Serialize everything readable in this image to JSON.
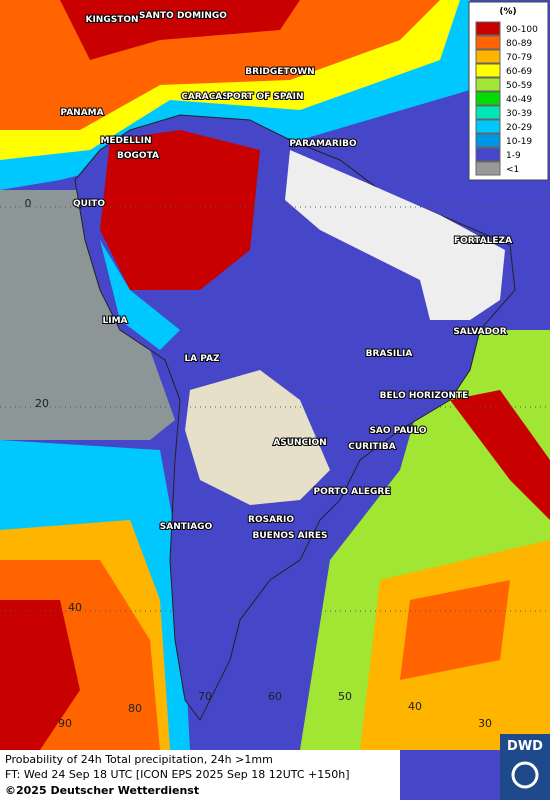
{
  "legend": {
    "title": "(%)",
    "items": [
      {
        "label": "90-100",
        "color": "#c80000"
      },
      {
        "label": "80-89",
        "color": "#ff6400"
      },
      {
        "label": "70-79",
        "color": "#ffb400"
      },
      {
        "label": "60-69",
        "color": "#ffff00"
      },
      {
        "label": "50-59",
        "color": "#a0e632"
      },
      {
        "label": "40-49",
        "color": "#00dc00"
      },
      {
        "label": "30-39",
        "color": "#00e6b4"
      },
      {
        "label": "20-29",
        "color": "#00c8ff"
      },
      {
        "label": "10-19",
        "color": "#0096e6"
      },
      {
        "label": "1-9",
        "color": "#4646c8"
      },
      {
        "label": "<1",
        "color": "#999999"
      }
    ]
  },
  "cities": [
    "KINGSTON",
    "SANTO DOMINGO",
    "BRIDGETOWN",
    "CARACAS",
    "PORT OF SPAIN",
    "PANAMA",
    "MEDELLIN",
    "BOGOTA",
    "PARAMARIBO",
    "QUITO",
    "FORTALEZA",
    "LIMA",
    "SALVADOR",
    "LA PAZ",
    "BRASILIA",
    "BELO HORIZONTE",
    "SAO PAULO",
    "CURITIBA",
    "ASUNCION",
    "PORTO ALEGRE",
    "ROSARIO",
    "SANTIAGO",
    "BUENOS AIRES"
  ],
  "grid_labels": [
    "0",
    "20",
    "40",
    "90",
    "80",
    "70",
    "60",
    "50",
    "40",
    "30"
  ],
  "footer": {
    "line1": "Probability of 24h Total precipitation, 24h >1mm",
    "line2": "FT: Wed 24 Sep 18 UTC [ICON EPS 2025 Sep 18 12UTC +150h]",
    "line3": "©2025 Deutscher Wetterdienst"
  },
  "logo": "DWD"
}
